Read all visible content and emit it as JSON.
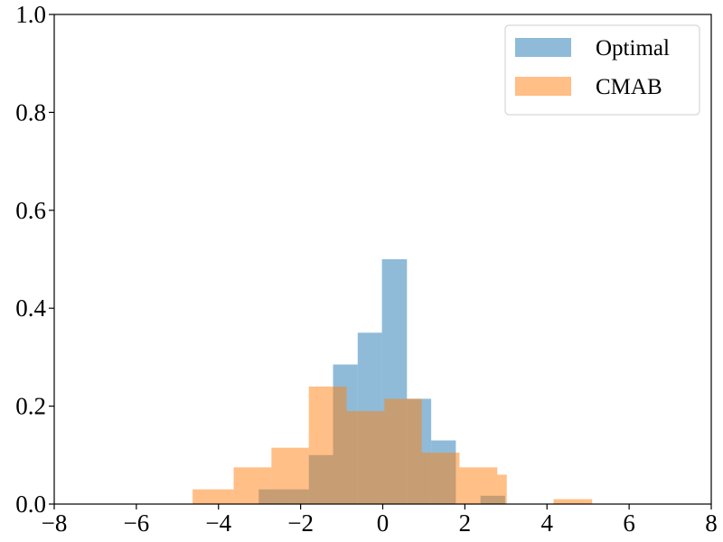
{
  "chart_data": {
    "type": "histogram",
    "xlim": [
      -8,
      8
    ],
    "ylim": [
      0,
      1.0
    ],
    "xticks": [
      -8,
      -6,
      -4,
      -2,
      0,
      2,
      4,
      6,
      8
    ],
    "xtick_labels": [
      "−8",
      "−6",
      "−4",
      "−2",
      "0",
      "2",
      "4",
      "6",
      "8"
    ],
    "yticks": [
      0.0,
      0.2,
      0.4,
      0.6,
      0.8,
      1.0
    ],
    "ytick_labels": [
      "0.0",
      "0.2",
      "0.4",
      "0.6",
      "0.8",
      "1.0"
    ],
    "grid": false,
    "legend_position": "top-right",
    "series": [
      {
        "name": "Optimal",
        "color": "#1f77b4",
        "opacity": 0.5,
        "bins": [
          {
            "x0": -3.02,
            "x1": -2.21,
            "y": 0.03
          },
          {
            "x0": -2.21,
            "x1": -1.8,
            "y": 0.03
          },
          {
            "x0": -1.8,
            "x1": -1.21,
            "y": 0.1
          },
          {
            "x0": -1.21,
            "x1": -0.61,
            "y": 0.285
          },
          {
            "x0": -0.61,
            "x1": -0.02,
            "y": 0.35
          },
          {
            "x0": -0.02,
            "x1": 0.59,
            "y": 0.5
          },
          {
            "x0": 0.59,
            "x1": 1.18,
            "y": 0.215
          },
          {
            "x0": 1.18,
            "x1": 1.78,
            "y": 0.13
          },
          {
            "x0": 2.38,
            "x1": 2.98,
            "y": 0.017
          }
        ]
      },
      {
        "name": "CMAB",
        "color": "#ff7f0e",
        "opacity": 0.5,
        "bins": [
          {
            "x0": -4.63,
            "x1": -3.63,
            "y": 0.03
          },
          {
            "x0": -3.63,
            "x1": -2.71,
            "y": 0.075
          },
          {
            "x0": -2.71,
            "x1": -1.8,
            "y": 0.115
          },
          {
            "x0": -1.8,
            "x1": -0.88,
            "y": 0.24
          },
          {
            "x0": -0.88,
            "x1": 0.04,
            "y": 0.19
          },
          {
            "x0": 0.04,
            "x1": 0.95,
            "y": 0.215
          },
          {
            "x0": 0.95,
            "x1": 1.87,
            "y": 0.105
          },
          {
            "x0": 1.87,
            "x1": 2.79,
            "y": 0.075
          },
          {
            "x0": 2.79,
            "x1": 3.02,
            "y": 0.06
          },
          {
            "x0": 4.16,
            "x1": 5.1,
            "y": 0.01
          }
        ]
      }
    ]
  }
}
